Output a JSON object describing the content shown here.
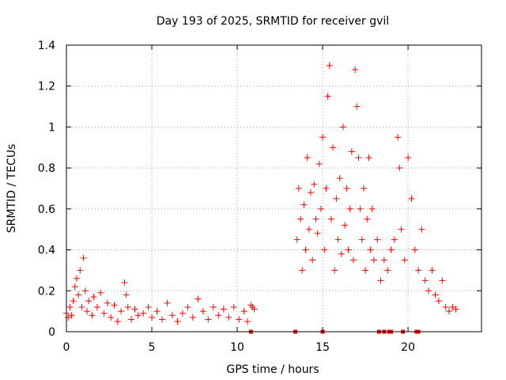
{
  "chart_data": {
    "type": "scatter",
    "title": "Day 193 of 2025, SRMTID for receiver gvil",
    "xlabel": "GPS time / hours",
    "ylabel": "SRMTID / TECUs",
    "xlim": [
      0,
      24.3
    ],
    "ylim": [
      0,
      1.4
    ],
    "xticks": [
      0,
      5,
      10,
      15,
      20
    ],
    "xtick_labels": [
      "0",
      "5",
      "10",
      "15",
      "20"
    ],
    "yticks": [
      0,
      0.2,
      0.4,
      0.6,
      0.8,
      1.0,
      1.2,
      1.4
    ],
    "ytick_labels": [
      "0",
      "0.2",
      "0.4",
      "0.6",
      "0.8",
      "1",
      "1.2",
      "1.4"
    ],
    "grid": true,
    "marker": "+",
    "series": [
      {
        "name": "SRMTID",
        "color": "#ff0000",
        "points": [
          [
            0.0,
            0.09
          ],
          [
            0.1,
            0.07
          ],
          [
            0.2,
            0.12
          ],
          [
            0.3,
            0.08
          ],
          [
            0.4,
            0.15
          ],
          [
            0.5,
            0.22
          ],
          [
            0.6,
            0.26
          ],
          [
            0.7,
            0.18
          ],
          [
            0.8,
            0.3
          ],
          [
            0.9,
            0.12
          ],
          [
            1.0,
            0.36
          ],
          [
            1.1,
            0.2
          ],
          [
            1.2,
            0.1
          ],
          [
            1.3,
            0.15
          ],
          [
            1.5,
            0.08
          ],
          [
            1.6,
            0.17
          ],
          [
            1.8,
            0.12
          ],
          [
            2.0,
            0.19
          ],
          [
            2.2,
            0.09
          ],
          [
            2.4,
            0.14
          ],
          [
            2.6,
            0.07
          ],
          [
            2.8,
            0.13
          ],
          [
            3.0,
            0.05
          ],
          [
            3.2,
            0.1
          ],
          [
            3.4,
            0.24
          ],
          [
            3.5,
            0.18
          ],
          [
            3.6,
            0.12
          ],
          [
            3.8,
            0.06
          ],
          [
            4.0,
            0.11
          ],
          [
            4.2,
            0.08
          ],
          [
            4.5,
            0.09
          ],
          [
            4.8,
            0.12
          ],
          [
            5.0,
            0.07
          ],
          [
            5.3,
            0.1
          ],
          [
            5.6,
            0.06
          ],
          [
            5.9,
            0.14
          ],
          [
            6.2,
            0.08
          ],
          [
            6.5,
            0.05
          ],
          [
            6.8,
            0.09
          ],
          [
            7.1,
            0.12
          ],
          [
            7.4,
            0.07
          ],
          [
            7.7,
            0.16
          ],
          [
            8.0,
            0.1
          ],
          [
            8.3,
            0.06
          ],
          [
            8.6,
            0.12
          ],
          [
            8.9,
            0.08
          ],
          [
            9.2,
            0.11
          ],
          [
            9.5,
            0.07
          ],
          [
            9.8,
            0.12
          ],
          [
            10.1,
            0.06
          ],
          [
            10.4,
            0.1
          ],
          [
            10.6,
            0.05
          ],
          [
            10.8,
            0.13
          ],
          [
            10.9,
            0.12
          ],
          [
            11.0,
            0.11
          ],
          [
            10.8,
            0.0
          ],
          [
            13.4,
            0.0
          ],
          [
            13.5,
            0.45
          ],
          [
            13.6,
            0.7
          ],
          [
            13.7,
            0.55
          ],
          [
            13.8,
            0.3
          ],
          [
            13.9,
            0.62
          ],
          [
            14.0,
            0.4
          ],
          [
            14.1,
            0.85
          ],
          [
            14.2,
            0.5
          ],
          [
            14.3,
            0.68
          ],
          [
            14.4,
            0.35
          ],
          [
            14.5,
            0.72
          ],
          [
            14.6,
            0.55
          ],
          [
            14.7,
            0.48
          ],
          [
            14.8,
            0.82
          ],
          [
            14.9,
            0.6
          ],
          [
            15.0,
            0.95
          ],
          [
            15.1,
            0.4
          ],
          [
            15.2,
            0.7
          ],
          [
            15.3,
            1.15
          ],
          [
            15.4,
            1.3
          ],
          [
            15.5,
            0.55
          ],
          [
            15.6,
            0.9
          ],
          [
            15.7,
            0.3
          ],
          [
            15.8,
            0.65
          ],
          [
            15.9,
            0.45
          ],
          [
            16.0,
            0.75
          ],
          [
            16.1,
            0.38
          ],
          [
            16.2,
            1.0
          ],
          [
            16.3,
            0.52
          ],
          [
            16.4,
            0.7
          ],
          [
            16.5,
            0.4
          ],
          [
            16.6,
            0.6
          ],
          [
            16.7,
            0.88
          ],
          [
            16.8,
            0.35
          ],
          [
            16.9,
            1.28
          ],
          [
            17.0,
            1.1
          ],
          [
            17.1,
            0.85
          ],
          [
            17.2,
            0.6
          ],
          [
            17.3,
            0.45
          ],
          [
            17.4,
            0.7
          ],
          [
            17.5,
            0.3
          ],
          [
            17.6,
            0.55
          ],
          [
            17.7,
            0.85
          ],
          [
            17.8,
            0.4
          ],
          [
            17.9,
            0.6
          ],
          [
            18.0,
            0.35
          ],
          [
            18.2,
            0.45
          ],
          [
            18.4,
            0.25
          ],
          [
            18.6,
            0.35
          ],
          [
            18.8,
            0.3
          ],
          [
            19.0,
            0.4
          ],
          [
            19.2,
            0.45
          ],
          [
            19.4,
            0.95
          ],
          [
            19.5,
            0.8
          ],
          [
            19.6,
            0.5
          ],
          [
            19.8,
            0.35
          ],
          [
            20.0,
            0.85
          ],
          [
            20.2,
            0.65
          ],
          [
            20.4,
            0.4
          ],
          [
            20.6,
            0.3
          ],
          [
            20.8,
            0.5
          ],
          [
            21.0,
            0.25
          ],
          [
            21.2,
            0.2
          ],
          [
            21.4,
            0.3
          ],
          [
            21.6,
            0.18
          ],
          [
            21.8,
            0.15
          ],
          [
            22.0,
            0.25
          ],
          [
            22.2,
            0.12
          ],
          [
            22.4,
            0.1
          ],
          [
            22.6,
            0.12
          ],
          [
            22.8,
            0.11
          ],
          [
            15.0,
            0.0
          ],
          [
            18.3,
            0.0
          ],
          [
            18.6,
            0.0
          ],
          [
            18.9,
            0.0
          ],
          [
            19.0,
            0.0
          ],
          [
            19.7,
            0.0
          ],
          [
            20.5,
            0.0
          ],
          [
            20.6,
            0.0
          ]
        ]
      }
    ]
  }
}
